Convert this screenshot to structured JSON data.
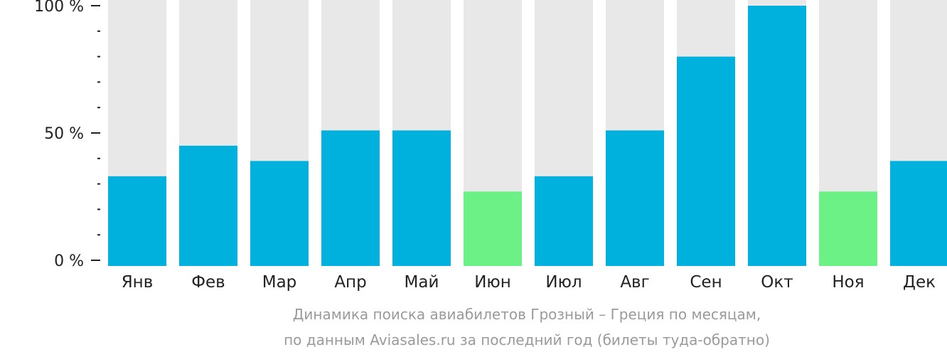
{
  "colors": {
    "background_bar": "#e8e8e8",
    "bar": "#00b1de",
    "bar_highlight": "#6cf187",
    "axis_text": "#222222",
    "caption_text": "#9a9a9a"
  },
  "caption": {
    "line1": "Динамика поиска авиабилетов Грозный – Греция по месяцам,",
    "line2": "по данным Aviasales.ru за последний год (билеты туда-обратно)"
  },
  "chart_data": {
    "type": "bar",
    "categories": [
      "Янв",
      "Фев",
      "Мар",
      "Апр",
      "Май",
      "Июн",
      "Июл",
      "Авг",
      "Сен",
      "Окт",
      "Ноя",
      "Дек"
    ],
    "values": [
      33,
      45,
      39,
      51,
      51,
      27,
      33,
      51,
      80,
      100,
      27,
      39
    ],
    "highlight": [
      false,
      false,
      false,
      false,
      false,
      true,
      false,
      false,
      false,
      false,
      true,
      false
    ],
    "ylim": [
      0,
      100
    ],
    "y_ticks": [
      {
        "value": 0,
        "label": "0 %"
      },
      {
        "value": 50,
        "label": "50 %"
      },
      {
        "value": 100,
        "label": "100 %"
      }
    ],
    "minor_ticks": [
      10,
      20,
      30,
      40,
      60,
      70,
      80,
      90
    ],
    "grid": false
  }
}
